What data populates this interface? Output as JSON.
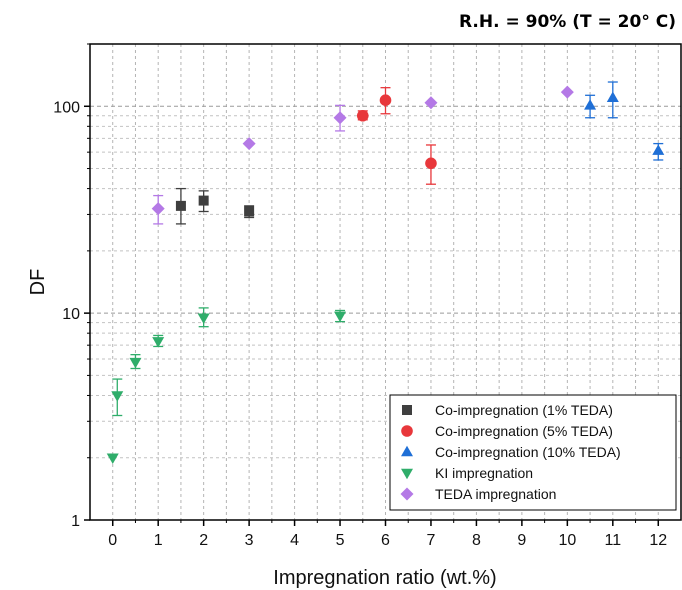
{
  "chart_data": {
    "type": "scatter",
    "title": "R.H. = 90% (T = 20° C)",
    "xlabel": "Impregnation ratio (wt.%)",
    "ylabel": "DF",
    "xlim": [
      -0.5,
      12.5
    ],
    "ylim": [
      1,
      200
    ],
    "yscale": "log",
    "x_ticks": [
      "0",
      "1",
      "2",
      "3",
      "4",
      "5",
      "6",
      "7",
      "8",
      "9",
      "10",
      "11",
      "12"
    ],
    "y_ticks": [
      "1",
      "10",
      "100"
    ],
    "grid": true,
    "legend_position": "bottom-right",
    "series": [
      {
        "name": "Co-impregnation (1% TEDA)",
        "marker": "square",
        "color": "#3f3f3f",
        "points": [
          {
            "x": 1.5,
            "y": 33,
            "err_low": 27,
            "err_high": 40
          },
          {
            "x": 2,
            "y": 35,
            "err_low": 31,
            "err_high": 39
          },
          {
            "x": 3,
            "y": 31,
            "err_low": 29,
            "err_high": 33
          }
        ]
      },
      {
        "name": "Co-impregnation (5% TEDA)",
        "marker": "circle",
        "color": "#e8373b",
        "points": [
          {
            "x": 5.5,
            "y": 90,
            "err_low": 86,
            "err_high": 95
          },
          {
            "x": 6,
            "y": 107,
            "err_low": 92,
            "err_high": 123
          },
          {
            "x": 7,
            "y": 53,
            "err_low": 42,
            "err_high": 65
          }
        ]
      },
      {
        "name": "Co-impregnation (10% TEDA)",
        "marker": "triangle-up",
        "color": "#1f6fd6",
        "points": [
          {
            "x": 10.5,
            "y": 101,
            "err_low": 88,
            "err_high": 113
          },
          {
            "x": 11,
            "y": 110,
            "err_low": 88,
            "err_high": 131
          },
          {
            "x": 12,
            "y": 61,
            "err_low": 55,
            "err_high": 66
          }
        ]
      },
      {
        "name": "KI impregnation",
        "marker": "triangle-down",
        "color": "#2fad6a",
        "points": [
          {
            "x": 0,
            "y": 2.0
          },
          {
            "x": 0.1,
            "y": 4.0,
            "err_low": 3.2,
            "err_high": 4.8
          },
          {
            "x": 0.5,
            "y": 5.8,
            "err_low": 5.4,
            "err_high": 6.3
          },
          {
            "x": 1,
            "y": 7.3,
            "err_low": 6.9,
            "err_high": 7.8
          },
          {
            "x": 2,
            "y": 9.5,
            "err_low": 8.6,
            "err_high": 10.6
          },
          {
            "x": 5,
            "y": 9.7,
            "err_low": 9.1,
            "err_high": 10.3
          }
        ]
      },
      {
        "name": "TEDA impregnation",
        "marker": "diamond",
        "color": "#b479e6",
        "points": [
          {
            "x": 1,
            "y": 32,
            "err_low": 27,
            "err_high": 37
          },
          {
            "x": 3,
            "y": 66
          },
          {
            "x": 5,
            "y": 88,
            "err_low": 76,
            "err_high": 101
          },
          {
            "x": 7,
            "y": 104
          },
          {
            "x": 10,
            "y": 117
          }
        ]
      }
    ]
  }
}
